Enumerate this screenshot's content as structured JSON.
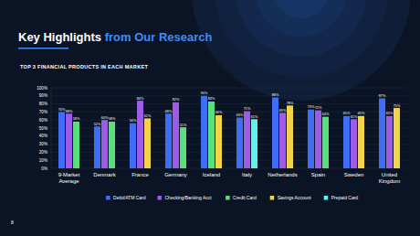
{
  "chart_data": {
    "type": "bar",
    "title": "Key Highlights from Our Research",
    "subtitle": "TOP 3 FINANCIAL PRODUCTS IN EACH MARKET",
    "page_number": "8",
    "categories": [
      "9-Market Average",
      "Denmark",
      "France",
      "Germany",
      "Iceland",
      "Italy",
      "Netherlands",
      "Spain",
      "Sweden",
      "United Kingdom"
    ],
    "series": [
      {
        "name": "Debit/ATM Card",
        "color": "#3f6df5",
        "values": [
          70,
          52,
          56,
          68,
          90,
          63,
          88,
          73,
          65,
          87
        ],
        "value_labels": [
          "70%",
          "52%",
          "56%",
          "68%",
          "90%",
          "63%",
          "88%",
          "73%",
          "65%",
          "87%"
        ]
      },
      {
        "name": "Checking/Banking Acct",
        "color": "#9d5ce8",
        "values": [
          68,
          60,
          84,
          82,
          null,
          71,
          69,
          72,
          61,
          65
        ],
        "value_labels": [
          "68%",
          "60%",
          "84%",
          "82%",
          null,
          "71%",
          "69%",
          "72%",
          "61%",
          "65%"
        ]
      },
      {
        "name": "Credit Card",
        "color": "#58e07c",
        "values": [
          58,
          58,
          null,
          51,
          83,
          null,
          null,
          64,
          null,
          null
        ],
        "value_labels": [
          "58%",
          "58%",
          null,
          "51%",
          "83%",
          null,
          null,
          "64%",
          null,
          null
        ]
      },
      {
        "name": "Savings Account",
        "color": "#f3d348",
        "values": [
          null,
          null,
          62,
          null,
          66,
          null,
          78,
          null,
          65,
          75
        ],
        "value_labels": [
          null,
          null,
          "62%",
          null,
          "66%",
          null,
          "78%",
          null,
          "65%",
          "75%"
        ]
      },
      {
        "name": "Prepaid Card",
        "color": "#5ef2ee",
        "values": [
          null,
          null,
          null,
          null,
          null,
          61,
          null,
          null,
          null,
          null
        ],
        "value_labels": [
          null,
          null,
          null,
          null,
          null,
          "61%",
          null,
          null,
          null,
          null
        ]
      }
    ],
    "ylim": [
      0,
      100
    ],
    "yticks": [
      {
        "value": 0,
        "label": "0%"
      },
      {
        "value": 10,
        "label": "10%"
      },
      {
        "value": 20,
        "label": "20%"
      },
      {
        "value": 30,
        "label": "30%"
      },
      {
        "value": 40,
        "label": "40%"
      },
      {
        "value": 50,
        "label": "50%"
      },
      {
        "value": 60,
        "label": "60%"
      },
      {
        "value": 70,
        "label": "70%"
      },
      {
        "value": 80,
        "label": "80%"
      },
      {
        "value": 90,
        "label": "90%"
      },
      {
        "value": 100,
        "label": "100%"
      }
    ],
    "grid": true,
    "data_labels": true,
    "legend": "bottom"
  }
}
